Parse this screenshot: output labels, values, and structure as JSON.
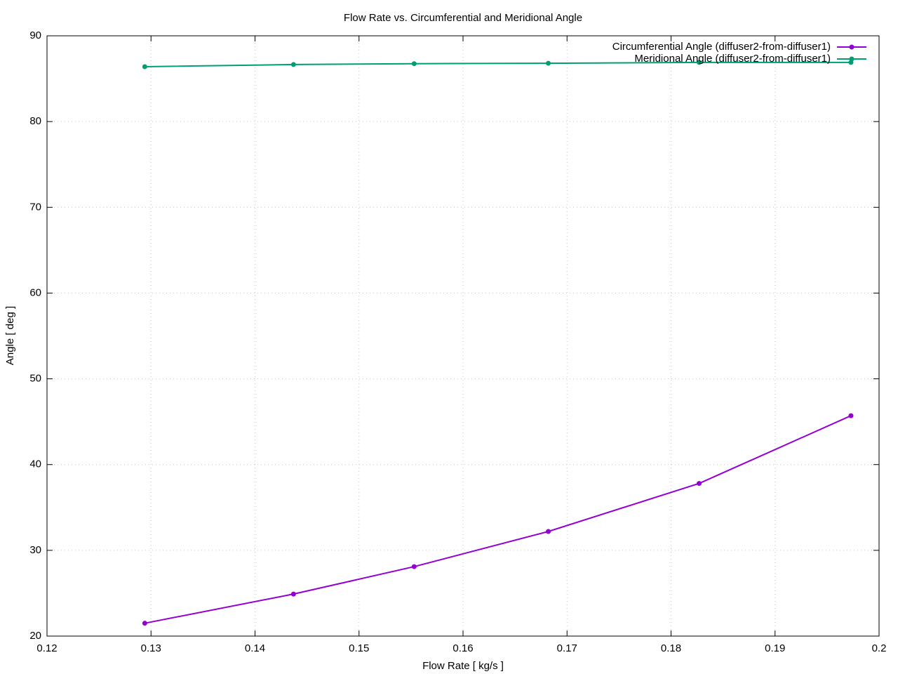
{
  "chart_data": {
    "type": "line",
    "title": "Flow Rate vs. Circumferential and Meridional Angle",
    "x_label": "Flow Rate [ kg/s ]",
    "y_label": "Angle [ deg ]",
    "x": [
      0.1294,
      0.1437,
      0.1553,
      0.1682,
      0.1827,
      0.1973
    ],
    "series": [
      {
        "name": "Circumferential Angle (diffuser2-from-diffuser1)",
        "color": "#9400d3",
        "values": [
          21.5,
          24.9,
          28.1,
          32.2,
          37.8,
          45.7
        ]
      },
      {
        "name": "Meridional Angle (diffuser2-from-diffuser1)",
        "color": "#009e73",
        "values": [
          86.4,
          86.65,
          86.75,
          86.8,
          86.9,
          86.9
        ]
      }
    ],
    "xlim": [
      0.12,
      0.2
    ],
    "xticks": [
      0.12,
      0.13,
      0.14,
      0.15,
      0.16,
      0.17,
      0.18,
      0.19,
      0.2
    ],
    "ylim": [
      20,
      90
    ],
    "yticks": [
      20,
      30,
      40,
      50,
      60,
      70,
      80,
      90
    ],
    "grid": true,
    "legend": "top-right"
  }
}
